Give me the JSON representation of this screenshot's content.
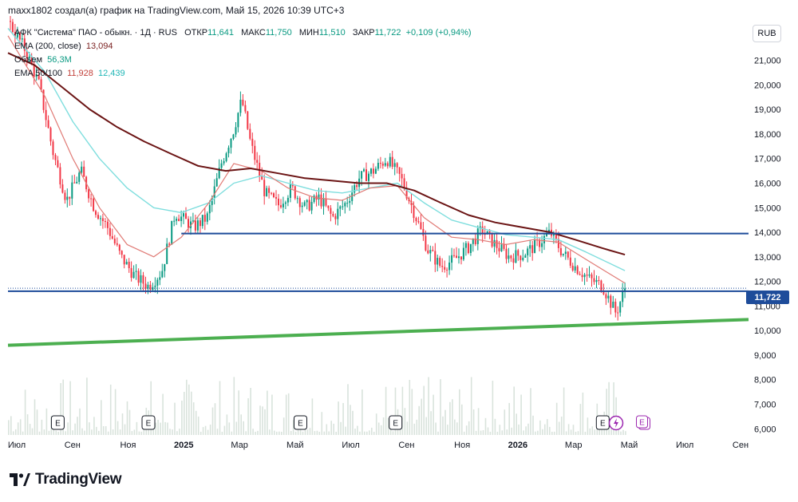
{
  "header": {
    "caption": "maxx1802 создал(а) график на TradingView.com, Май 15, 2026 10:39 UTC+3"
  },
  "legend": {
    "title": "АФК \"Система\" ПАО - обыкн. · 1Д · RUS",
    "open_label": "ОТКР",
    "open_value": "11,641",
    "high_label": "МАКС",
    "high_value": "11,750",
    "low_label": "МИН",
    "low_value": "11,510",
    "close_label": "ЗАКР",
    "close_value": "11,722",
    "change": "+0,109 (+0,94%)",
    "ema200_label": "EMA (200, close)",
    "ema200_value": "13,094",
    "volume_label": "Объем",
    "volume_value": "56,3M",
    "ema50_100_label": "EMA 50/100",
    "ema50_value": "11,928",
    "ema100_value": "12,439"
  },
  "toolbar": {
    "currency": "RUB"
  },
  "price_tag": "11,722",
  "logo": {
    "text": "TradingView"
  },
  "colors": {
    "up": "#089981",
    "down": "#f23645",
    "ema50": "#e07a75",
    "ema100": "#7fdede",
    "ema200": "#6b1414",
    "hline": "#1e4c9a",
    "trend": "#4caf50",
    "volume": "#d9e3dc"
  },
  "chart_data": {
    "type": "candlestick",
    "symbol": "АФК \"Система\" ПАО - обыкн.",
    "interval": "1Д",
    "y_axis": {
      "ticks": [
        "22,000",
        "21,000",
        "20,000",
        "19,000",
        "18,000",
        "17,000",
        "16,000",
        "15,000",
        "14,000",
        "13,000",
        "12,000",
        "11,000",
        "10,000",
        "9,000",
        "8,000",
        "7,000",
        "6,000"
      ],
      "range": [
        5.75,
        23.0
      ]
    },
    "x_axis": {
      "ticks": [
        "Июл",
        "Сен",
        "Ноя",
        "2025",
        "Мар",
        "Май",
        "Июл",
        "Сен",
        "Ноя",
        "2026",
        "Мар",
        "Май",
        "Июл",
        "Сен"
      ]
    },
    "price_path": [
      [
        "2024-06-20",
        22.6
      ],
      [
        "2024-07-10",
        21.4
      ],
      [
        "2024-07-25",
        20.0
      ],
      [
        "2024-08-10",
        17.2
      ],
      [
        "2024-08-25",
        15.3
      ],
      [
        "2024-09-10",
        16.5
      ],
      [
        "2024-09-25",
        15.0
      ],
      [
        "2024-10-10",
        14.2
      ],
      [
        "2024-10-25",
        13.0
      ],
      [
        "2024-11-10",
        12.2
      ],
      [
        "2024-11-25",
        11.8
      ],
      [
        "2024-12-10",
        12.4
      ],
      [
        "2024-12-25",
        14.8
      ],
      [
        "2025-01-15",
        14.2
      ],
      [
        "2025-01-30",
        14.6
      ],
      [
        "2025-02-15",
        16.8
      ],
      [
        "2025-03-01",
        18.2
      ],
      [
        "2025-03-10",
        19.4
      ],
      [
        "2025-03-20",
        17.6
      ],
      [
        "2025-04-05",
        15.6
      ],
      [
        "2025-04-20",
        15.1
      ],
      [
        "2025-05-05",
        15.8
      ],
      [
        "2025-05-20",
        15.0
      ],
      [
        "2025-06-05",
        15.4
      ],
      [
        "2025-06-20",
        14.6
      ],
      [
        "2025-07-05",
        15.2
      ],
      [
        "2025-07-20",
        16.2
      ],
      [
        "2025-08-05",
        16.5
      ],
      [
        "2025-08-20",
        17.0
      ],
      [
        "2025-09-05",
        16.2
      ],
      [
        "2025-09-20",
        14.8
      ],
      [
        "2025-10-05",
        13.3
      ],
      [
        "2025-10-20",
        12.6
      ],
      [
        "2025-11-05",
        12.9
      ],
      [
        "2025-11-20",
        13.4
      ],
      [
        "2025-12-05",
        14.1
      ],
      [
        "2025-12-20",
        13.5
      ],
      [
        "2026-01-05",
        13.0
      ],
      [
        "2026-01-20",
        13.1
      ],
      [
        "2026-02-05",
        13.5
      ],
      [
        "2026-02-20",
        14.0
      ],
      [
        "2026-03-05",
        13.2
      ],
      [
        "2026-03-20",
        12.6
      ],
      [
        "2026-04-05",
        12.1
      ],
      [
        "2026-04-20",
        11.8
      ],
      [
        "2026-04-28",
        11.2
      ],
      [
        "2026-05-05",
        10.7
      ],
      [
        "2026-05-15",
        11.72
      ]
    ],
    "ema50": [
      [
        "2024-06-20",
        22.0
      ],
      [
        "2024-08-01",
        19.5
      ],
      [
        "2024-09-01",
        17.0
      ],
      [
        "2024-10-01",
        15.0
      ],
      [
        "2024-11-01",
        13.5
      ],
      [
        "2024-12-01",
        13.0
      ],
      [
        "2025-01-01",
        13.8
      ],
      [
        "2025-02-01",
        15.2
      ],
      [
        "2025-03-01",
        16.8
      ],
      [
        "2025-04-01",
        16.5
      ],
      [
        "2025-05-01",
        15.8
      ],
      [
        "2025-06-01",
        15.4
      ],
      [
        "2025-07-01",
        15.3
      ],
      [
        "2025-08-01",
        15.8
      ],
      [
        "2025-09-01",
        15.9
      ],
      [
        "2025-10-01",
        14.6
      ],
      [
        "2025-11-01",
        13.8
      ],
      [
        "2025-12-01",
        13.7
      ],
      [
        "2026-01-01",
        13.5
      ],
      [
        "2026-02-01",
        13.7
      ],
      [
        "2026-03-01",
        13.6
      ],
      [
        "2026-04-01",
        12.9
      ],
      [
        "2026-05-15",
        11.93
      ]
    ],
    "ema100": [
      [
        "2024-06-20",
        22.3
      ],
      [
        "2024-08-01",
        20.5
      ],
      [
        "2024-09-01",
        18.5
      ],
      [
        "2024-10-01",
        17.0
      ],
      [
        "2024-11-01",
        15.8
      ],
      [
        "2024-12-01",
        15.0
      ],
      [
        "2025-01-01",
        14.8
      ],
      [
        "2025-02-01",
        15.2
      ],
      [
        "2025-03-01",
        16.0
      ],
      [
        "2025-04-01",
        16.3
      ],
      [
        "2025-05-01",
        16.0
      ],
      [
        "2025-06-01",
        15.7
      ],
      [
        "2025-07-01",
        15.6
      ],
      [
        "2025-08-01",
        15.8
      ],
      [
        "2025-09-01",
        16.0
      ],
      [
        "2025-10-01",
        15.2
      ],
      [
        "2025-11-01",
        14.5
      ],
      [
        "2025-12-01",
        14.2
      ],
      [
        "2026-01-01",
        13.9
      ],
      [
        "2026-02-01",
        13.8
      ],
      [
        "2026-03-01",
        13.7
      ],
      [
        "2026-04-01",
        13.2
      ],
      [
        "2026-05-15",
        12.44
      ]
    ],
    "ema200": [
      [
        "2024-06-20",
        21.3
      ],
      [
        "2024-07-20",
        20.8
      ],
      [
        "2024-08-20",
        19.9
      ],
      [
        "2024-09-20",
        19.0
      ],
      [
        "2024-10-20",
        18.3
      ],
      [
        "2024-11-20",
        17.7
      ],
      [
        "2024-12-20",
        17.2
      ],
      [
        "2025-01-20",
        16.7
      ],
      [
        "2025-02-20",
        16.5
      ],
      [
        "2025-03-20",
        16.6
      ],
      [
        "2025-04-20",
        16.4
      ],
      [
        "2025-05-20",
        16.2
      ],
      [
        "2025-06-20",
        16.1
      ],
      [
        "2025-07-20",
        16.0
      ],
      [
        "2025-08-20",
        16.0
      ],
      [
        "2025-09-20",
        15.7
      ],
      [
        "2025-10-20",
        15.2
      ],
      [
        "2025-11-20",
        14.7
      ],
      [
        "2025-12-20",
        14.4
      ],
      [
        "2026-01-20",
        14.2
      ],
      [
        "2026-02-20",
        14.0
      ],
      [
        "2026-03-20",
        13.7
      ],
      [
        "2026-04-20",
        13.35
      ],
      [
        "2026-05-15",
        13.09
      ]
    ],
    "horizontal_lines": [
      {
        "from": "2025-01-01",
        "to": "2026-10-01",
        "value": 13.95
      },
      {
        "from": "2024-06-20",
        "to": "2026-10-01",
        "value": 11.6
      }
    ],
    "trendline": {
      "from": [
        "2024-06-20",
        9.4
      ],
      "to": [
        "2026-10-01",
        10.45
      ]
    },
    "last_price_line": 11.722,
    "earnings_markers": [
      "2024-08-15",
      "2024-11-25",
      "2025-05-15",
      "2025-08-30",
      "2026-04-20"
    ],
    "extra_markers": [
      {
        "date": "2026-05-05",
        "kind": "lightning"
      },
      {
        "date": "2026-06-05",
        "kind": "earnings-upcoming"
      }
    ],
    "earnings_marker_label": "E",
    "grid": false,
    "legend_position": "top-left"
  }
}
